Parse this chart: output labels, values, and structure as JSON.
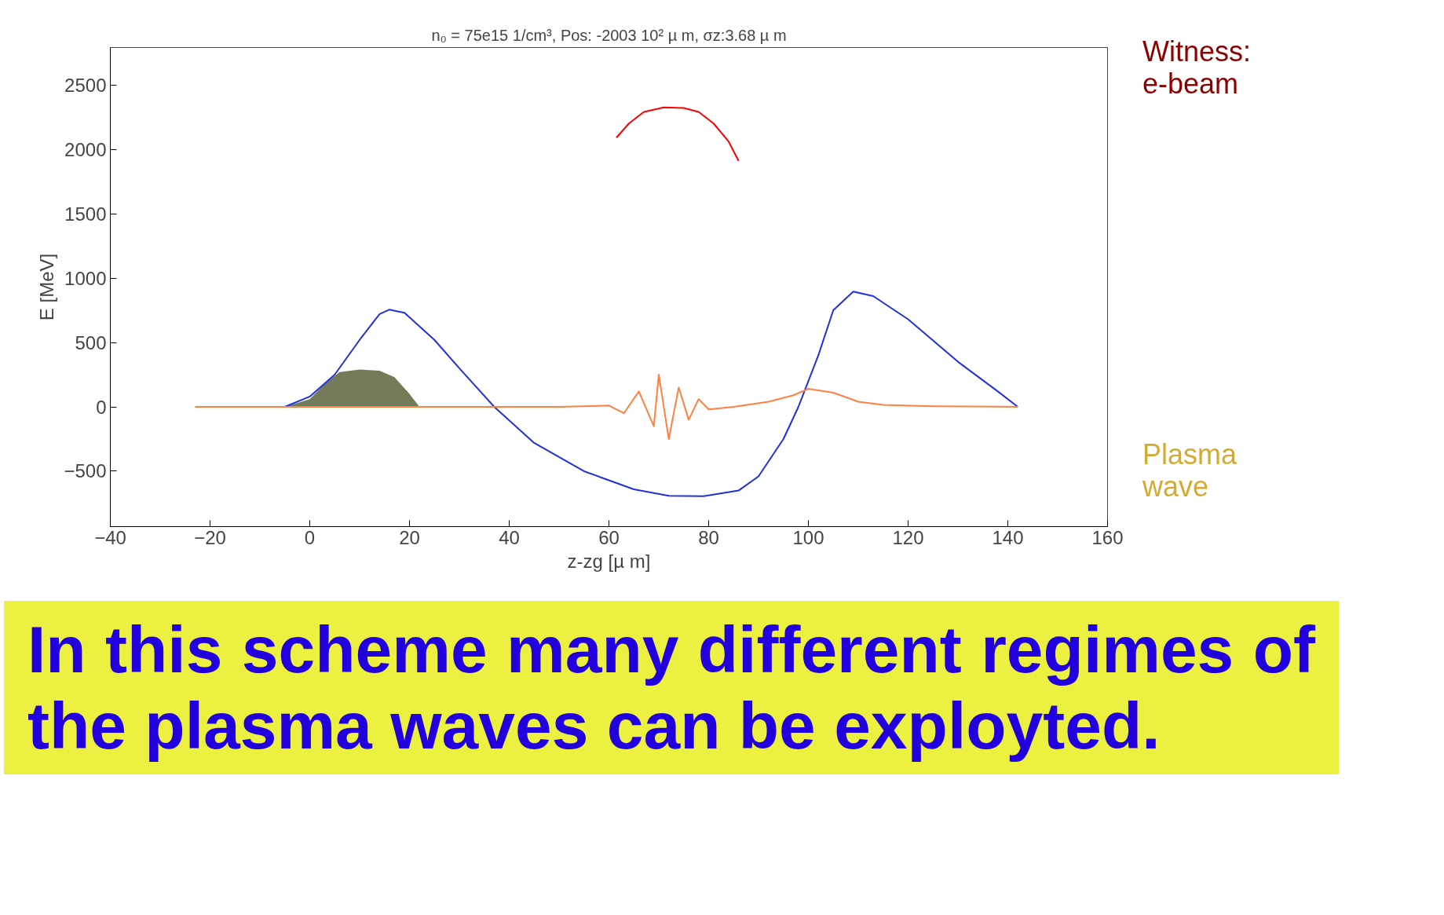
{
  "chart_data": {
    "type": "line",
    "title": "n₀ = 75e15 1/cm³, Pos: -2003 10² µ m, σz:3.68 µ m",
    "xlabel": "z-zg [µ m]",
    "ylabel": "E [MeV]",
    "xlim": [
      -40,
      160
    ],
    "xticks": [
      -40,
      -20,
      0,
      20,
      40,
      60,
      80,
      100,
      120,
      140,
      160
    ],
    "ylim": [
      -930,
      2790
    ],
    "yticks": [
      -500,
      0,
      500,
      1000,
      1500,
      2000,
      2500
    ],
    "grid": false,
    "series": [
      {
        "type": "area",
        "color": "#505a30",
        "x": [
          -5,
          0,
          3,
          6,
          10,
          14,
          17,
          20,
          22
        ],
        "values": [
          0,
          60,
          180,
          270,
          290,
          280,
          230,
          100,
          0
        ]
      },
      {
        "color": "#2030e0",
        "x": [
          -5,
          0,
          5,
          10,
          14,
          16,
          19,
          25,
          30,
          37,
          45,
          55,
          65,
          72,
          79,
          86,
          90,
          95,
          98,
          102,
          105,
          109,
          113,
          120,
          130,
          138,
          142
        ],
        "values": [
          0,
          80,
          250,
          520,
          720,
          755,
          730,
          520,
          300,
          0,
          -280,
          -500,
          -640,
          -690,
          -694,
          -650,
          -540,
          -250,
          0,
          400,
          750,
          895,
          860,
          680,
          350,
          120,
          0
        ]
      },
      {
        "color": "#ff8040",
        "x": [
          -23,
          50,
          60,
          63,
          66,
          69,
          70,
          72,
          74,
          76,
          78,
          80,
          85,
          92,
          97,
          100,
          105,
          110,
          115,
          125,
          142
        ],
        "values": [
          0,
          0,
          10,
          -50,
          120,
          -150,
          250,
          -250,
          150,
          -100,
          60,
          -20,
          0,
          40,
          90,
          140,
          110,
          40,
          15,
          5,
          0
        ]
      },
      {
        "color": "#ff0000",
        "x": [
          61.5,
          64,
          67,
          71,
          75,
          78,
          81,
          84,
          86
        ],
        "values": [
          2090,
          2200,
          2290,
          2325,
          2320,
          2290,
          2200,
          2060,
          1910
        ]
      }
    ],
    "annotations": [
      "Witness:\ne-beam",
      "Plasma\nwave",
      "In this scheme many different regimes of the plasma waves can be exployted."
    ]
  }
}
